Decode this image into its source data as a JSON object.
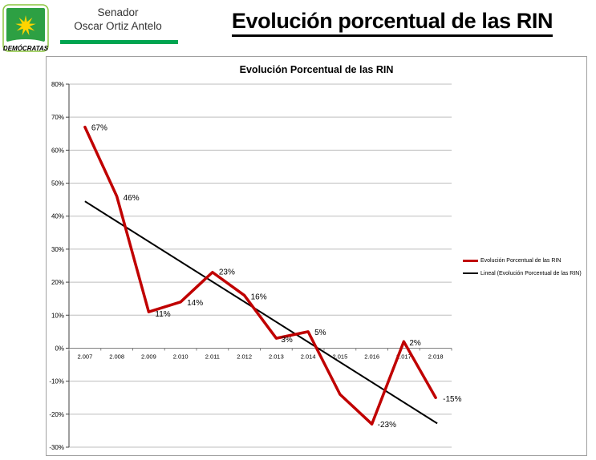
{
  "header": {
    "logo_text": "DEMÓCRATAS",
    "senator_line1": "Senador",
    "senator_line2": "Oscar Ortiz Antelo",
    "page_title": "Evolución porcentual de las RIN",
    "accent_green": "#00a551"
  },
  "chart": {
    "title": "Evolución Porcentual de las RIN",
    "legend": [
      {
        "label": "Evolución Porcentual de las RIN",
        "color": "#c00000"
      },
      {
        "label": "Lineal (Evolución Porcentual de las RIN)",
        "color": "#000000"
      }
    ]
  },
  "chart_data": {
    "type": "line",
    "title": "Evolución Porcentual de las RIN",
    "categories": [
      "2.007",
      "2.008",
      "2.009",
      "2.010",
      "2.011",
      "2.012",
      "2.013",
      "2.014",
      "2.015",
      "2.016",
      "2.017",
      "2.018"
    ],
    "series": [
      {
        "name": "Evolución Porcentual de las RIN",
        "values": [
          67,
          46,
          11,
          14,
          23,
          16,
          3,
          5,
          -14,
          -23,
          2,
          -15
        ],
        "color": "#c00000"
      }
    ],
    "point_labels": [
      "67%",
      "46%",
      "11%",
      "14%",
      "23%",
      "16%",
      "3%",
      "5%",
      "",
      "-23%",
      "2%",
      "-15%"
    ],
    "trendline": {
      "name": "Lineal (Evolución Porcentual de las RIN)",
      "start": 44.5,
      "end": -22.8,
      "color": "#000000"
    },
    "xlabel": "",
    "ylabel": "",
    "ylim": [
      -30,
      80
    ],
    "ytick_step": 10,
    "ytick_labels": [
      "80%",
      "70%",
      "60%",
      "50%",
      "40%",
      "30%",
      "20%",
      "10%",
      "0%",
      "-10%",
      "-20%",
      "-30%"
    ],
    "grid": "horizontal",
    "legend_position": "right"
  }
}
